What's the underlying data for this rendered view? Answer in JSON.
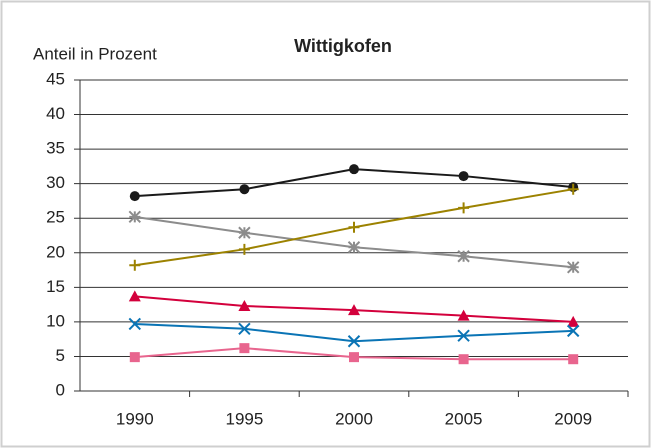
{
  "chart_data": {
    "type": "line",
    "title": "Wittigkofen",
    "y_label": "Anteil in Prozent",
    "categories": [
      "1990",
      "1995",
      "2000",
      "2005",
      "2009"
    ],
    "series": [
      {
        "color": "#1a1a1a",
        "marker": "circle",
        "values": [
          28.2,
          29.2,
          32.1,
          31.1,
          29.5
        ]
      },
      {
        "color": "#8c8c8c",
        "marker": "star",
        "values": [
          25.2,
          22.9,
          20.8,
          19.5,
          17.9
        ]
      },
      {
        "color": "#9c8200",
        "marker": "plus",
        "values": [
          18.2,
          20.5,
          23.7,
          26.5,
          29.2
        ]
      },
      {
        "color": "#d3003c",
        "marker": "triangle",
        "values": [
          13.7,
          12.3,
          11.7,
          10.9,
          10.0
        ]
      },
      {
        "color": "#0a74b5",
        "marker": "x",
        "values": [
          9.7,
          9.0,
          7.2,
          8.0,
          8.7
        ]
      },
      {
        "color": "#e8658e",
        "marker": "square",
        "values": [
          4.9,
          6.2,
          4.9,
          4.6,
          4.6
        ]
      }
    ],
    "ylim": [
      0,
      45
    ],
    "yticks": [
      0,
      5,
      10,
      15,
      20,
      25,
      30,
      35,
      40,
      45
    ],
    "grid": true
  }
}
